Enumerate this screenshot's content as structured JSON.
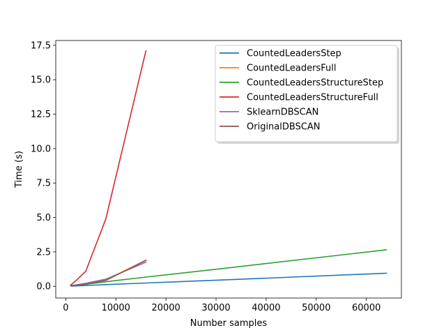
{
  "chart_data": {
    "type": "line",
    "title": "",
    "xlabel": "Number samples",
    "ylabel": "Time (s)",
    "xlim": [
      -2000,
      67000
    ],
    "ylim": [
      -0.85,
      17.85
    ],
    "xticks": [
      10000,
      20000,
      30000,
      40000,
      50000,
      60000
    ],
    "xtick_labels": [
      "10000",
      "20000",
      "30000",
      "40000",
      "50000",
      "60000"
    ],
    "x0_label": "0",
    "yticks": [
      0.0,
      2.5,
      5.0,
      7.5,
      10.0,
      12.5,
      15.0,
      17.5
    ],
    "ytick_labels": [
      "0.0",
      "2.5",
      "5.0",
      "7.5",
      "10.0",
      "12.5",
      "15.0",
      "17.5"
    ],
    "grid": false,
    "legend_position": "top-right",
    "series": [
      {
        "name": "CountedLeadersStep",
        "color": "#1f77b4",
        "x": [
          1000,
          2000,
          4000,
          8000,
          16000,
          32000,
          64000
        ],
        "y": [
          0.02,
          0.03,
          0.06,
          0.12,
          0.24,
          0.47,
          0.95
        ]
      },
      {
        "name": "CountedLeadersFull",
        "color": "#ff7f0e",
        "x": [
          1000,
          2000,
          4000,
          8000,
          16000
        ],
        "y": [
          0.05,
          0.08,
          0.17,
          0.45,
          1.9
        ]
      },
      {
        "name": "CountedLeadersStructureStep",
        "color": "#2ca02c",
        "x": [
          1000,
          2000,
          4000,
          8000,
          16000,
          32000,
          64000
        ],
        "y": [
          0.04,
          0.07,
          0.15,
          0.33,
          0.67,
          1.32,
          2.65
        ]
      },
      {
        "name": "CountedLeadersStructureFull",
        "color": "#d62728",
        "x": [
          1000,
          2000,
          4000,
          8000,
          16000
        ],
        "y": [
          0.1,
          0.4,
          1.1,
          4.9,
          17.1
        ]
      },
      {
        "name": "SklearnDBSCAN",
        "color": "#9467bd",
        "x": [
          1000,
          2000,
          4000,
          8000,
          16000
        ],
        "y": [
          0.06,
          0.1,
          0.22,
          0.52,
          1.75
        ]
      },
      {
        "name": "OriginalDBSCAN",
        "color": "#8c564b",
        "x": [
          1000,
          2000,
          4000,
          8000,
          16000
        ],
        "y": [
          0.05,
          0.08,
          0.17,
          0.43,
          1.88
        ]
      }
    ]
  }
}
